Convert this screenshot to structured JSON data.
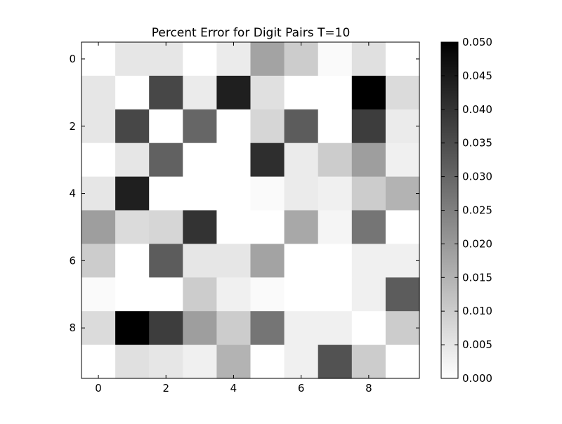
{
  "chart_data": {
    "type": "heatmap",
    "title": "Percent Error for Digit Pairs T=10",
    "xlabel": "",
    "ylabel": "",
    "x_ticks": [
      "0",
      "2",
      "4",
      "6",
      "8"
    ],
    "y_ticks": [
      "0",
      "2",
      "4",
      "6",
      "8"
    ],
    "rows": 10,
    "cols": 10,
    "values": [
      [
        0.0,
        0.005,
        0.005,
        0.0,
        0.004,
        0.018,
        0.01,
        0.001,
        0.006,
        0.0
      ],
      [
        0.005,
        0.0,
        0.036,
        0.004,
        0.044,
        0.006,
        0.0,
        0.0,
        0.05,
        0.007
      ],
      [
        0.005,
        0.036,
        0.0,
        0.03,
        0.0,
        0.008,
        0.032,
        0.0,
        0.038,
        0.004
      ],
      [
        0.0,
        0.005,
        0.031,
        0.0,
        0.0,
        0.041,
        0.004,
        0.01,
        0.019,
        0.003
      ],
      [
        0.005,
        0.044,
        0.0,
        0.0,
        0.0,
        0.001,
        0.004,
        0.003,
        0.01,
        0.015
      ],
      [
        0.019,
        0.007,
        0.008,
        0.04,
        0.0,
        0.0,
        0.017,
        0.002,
        0.027,
        0.0
      ],
      [
        0.01,
        0.0,
        0.032,
        0.005,
        0.005,
        0.018,
        0.0,
        0.0,
        0.003,
        0.003
      ],
      [
        0.001,
        0.0,
        0.0,
        0.01,
        0.003,
        0.001,
        0.0,
        0.0,
        0.003,
        0.032
      ],
      [
        0.007,
        0.05,
        0.038,
        0.019,
        0.01,
        0.027,
        0.003,
        0.003,
        0.0,
        0.01
      ],
      [
        0.0,
        0.006,
        0.005,
        0.003,
        0.015,
        0.0,
        0.003,
        0.034,
        0.01,
        0.0
      ]
    ],
    "colorbar": {
      "min": 0.0,
      "max": 0.05,
      "ticks": [
        "0.000",
        "0.005",
        "0.010",
        "0.015",
        "0.020",
        "0.025",
        "0.030",
        "0.035",
        "0.040",
        "0.045",
        "0.050"
      ],
      "colormap": "gray_r",
      "low_color": "#ffffff",
      "high_color": "#000000"
    },
    "grid": false
  }
}
